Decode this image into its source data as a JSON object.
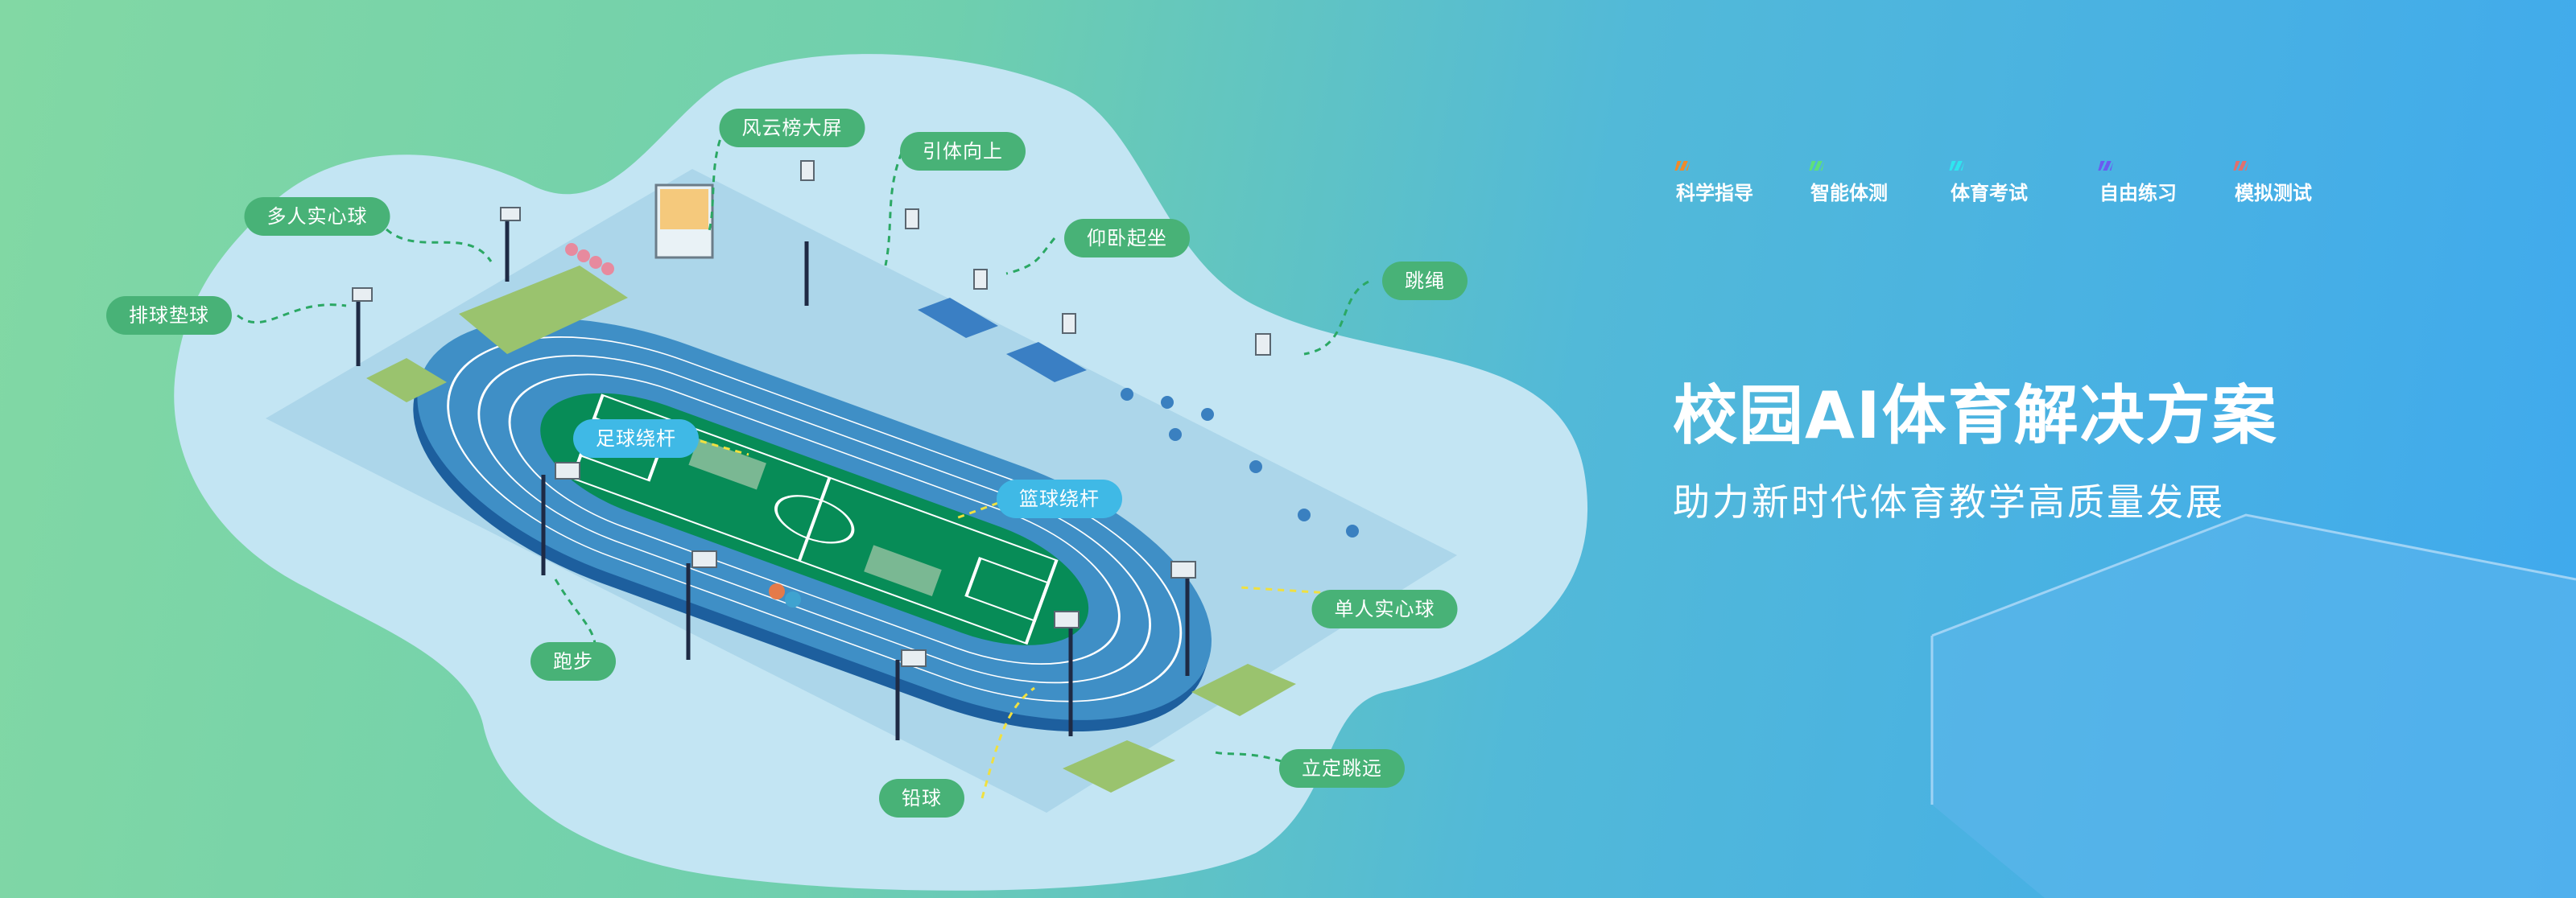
{
  "nav": {
    "items": [
      {
        "label": "科学指导",
        "color": "#f08a2a"
      },
      {
        "label": "智能体测",
        "color": "#5ee07a"
      },
      {
        "label": "体育考试",
        "color": "#2ee6f0"
      },
      {
        "label": "自由练习",
        "color": "#6a5cf0"
      },
      {
        "label": "模拟测试",
        "color": "#e0706e"
      }
    ]
  },
  "hero": {
    "title": "校园AI体育解决方案",
    "subtitle": "助力新时代体育教学高质量发展"
  },
  "stations": {
    "leaderboard": "风云榜大屏",
    "pullup": "引体向上",
    "multi_medicine_ball": "多人实心球",
    "situp": "仰卧起坐",
    "jump_rope": "跳绳",
    "volleyball": "排球垫球",
    "football_dribble": "足球绕杆",
    "basketball_dribble": "篮球绕杆",
    "single_medicine_ball": "单人实心球",
    "running": "跑步",
    "standing_long_jump": "立定跳远",
    "shot_put": "铅球"
  },
  "colors": {
    "label_green": "#48b277",
    "label_blue": "#3fb9e6",
    "track": "#3f8fc6",
    "field": "#078c57"
  }
}
